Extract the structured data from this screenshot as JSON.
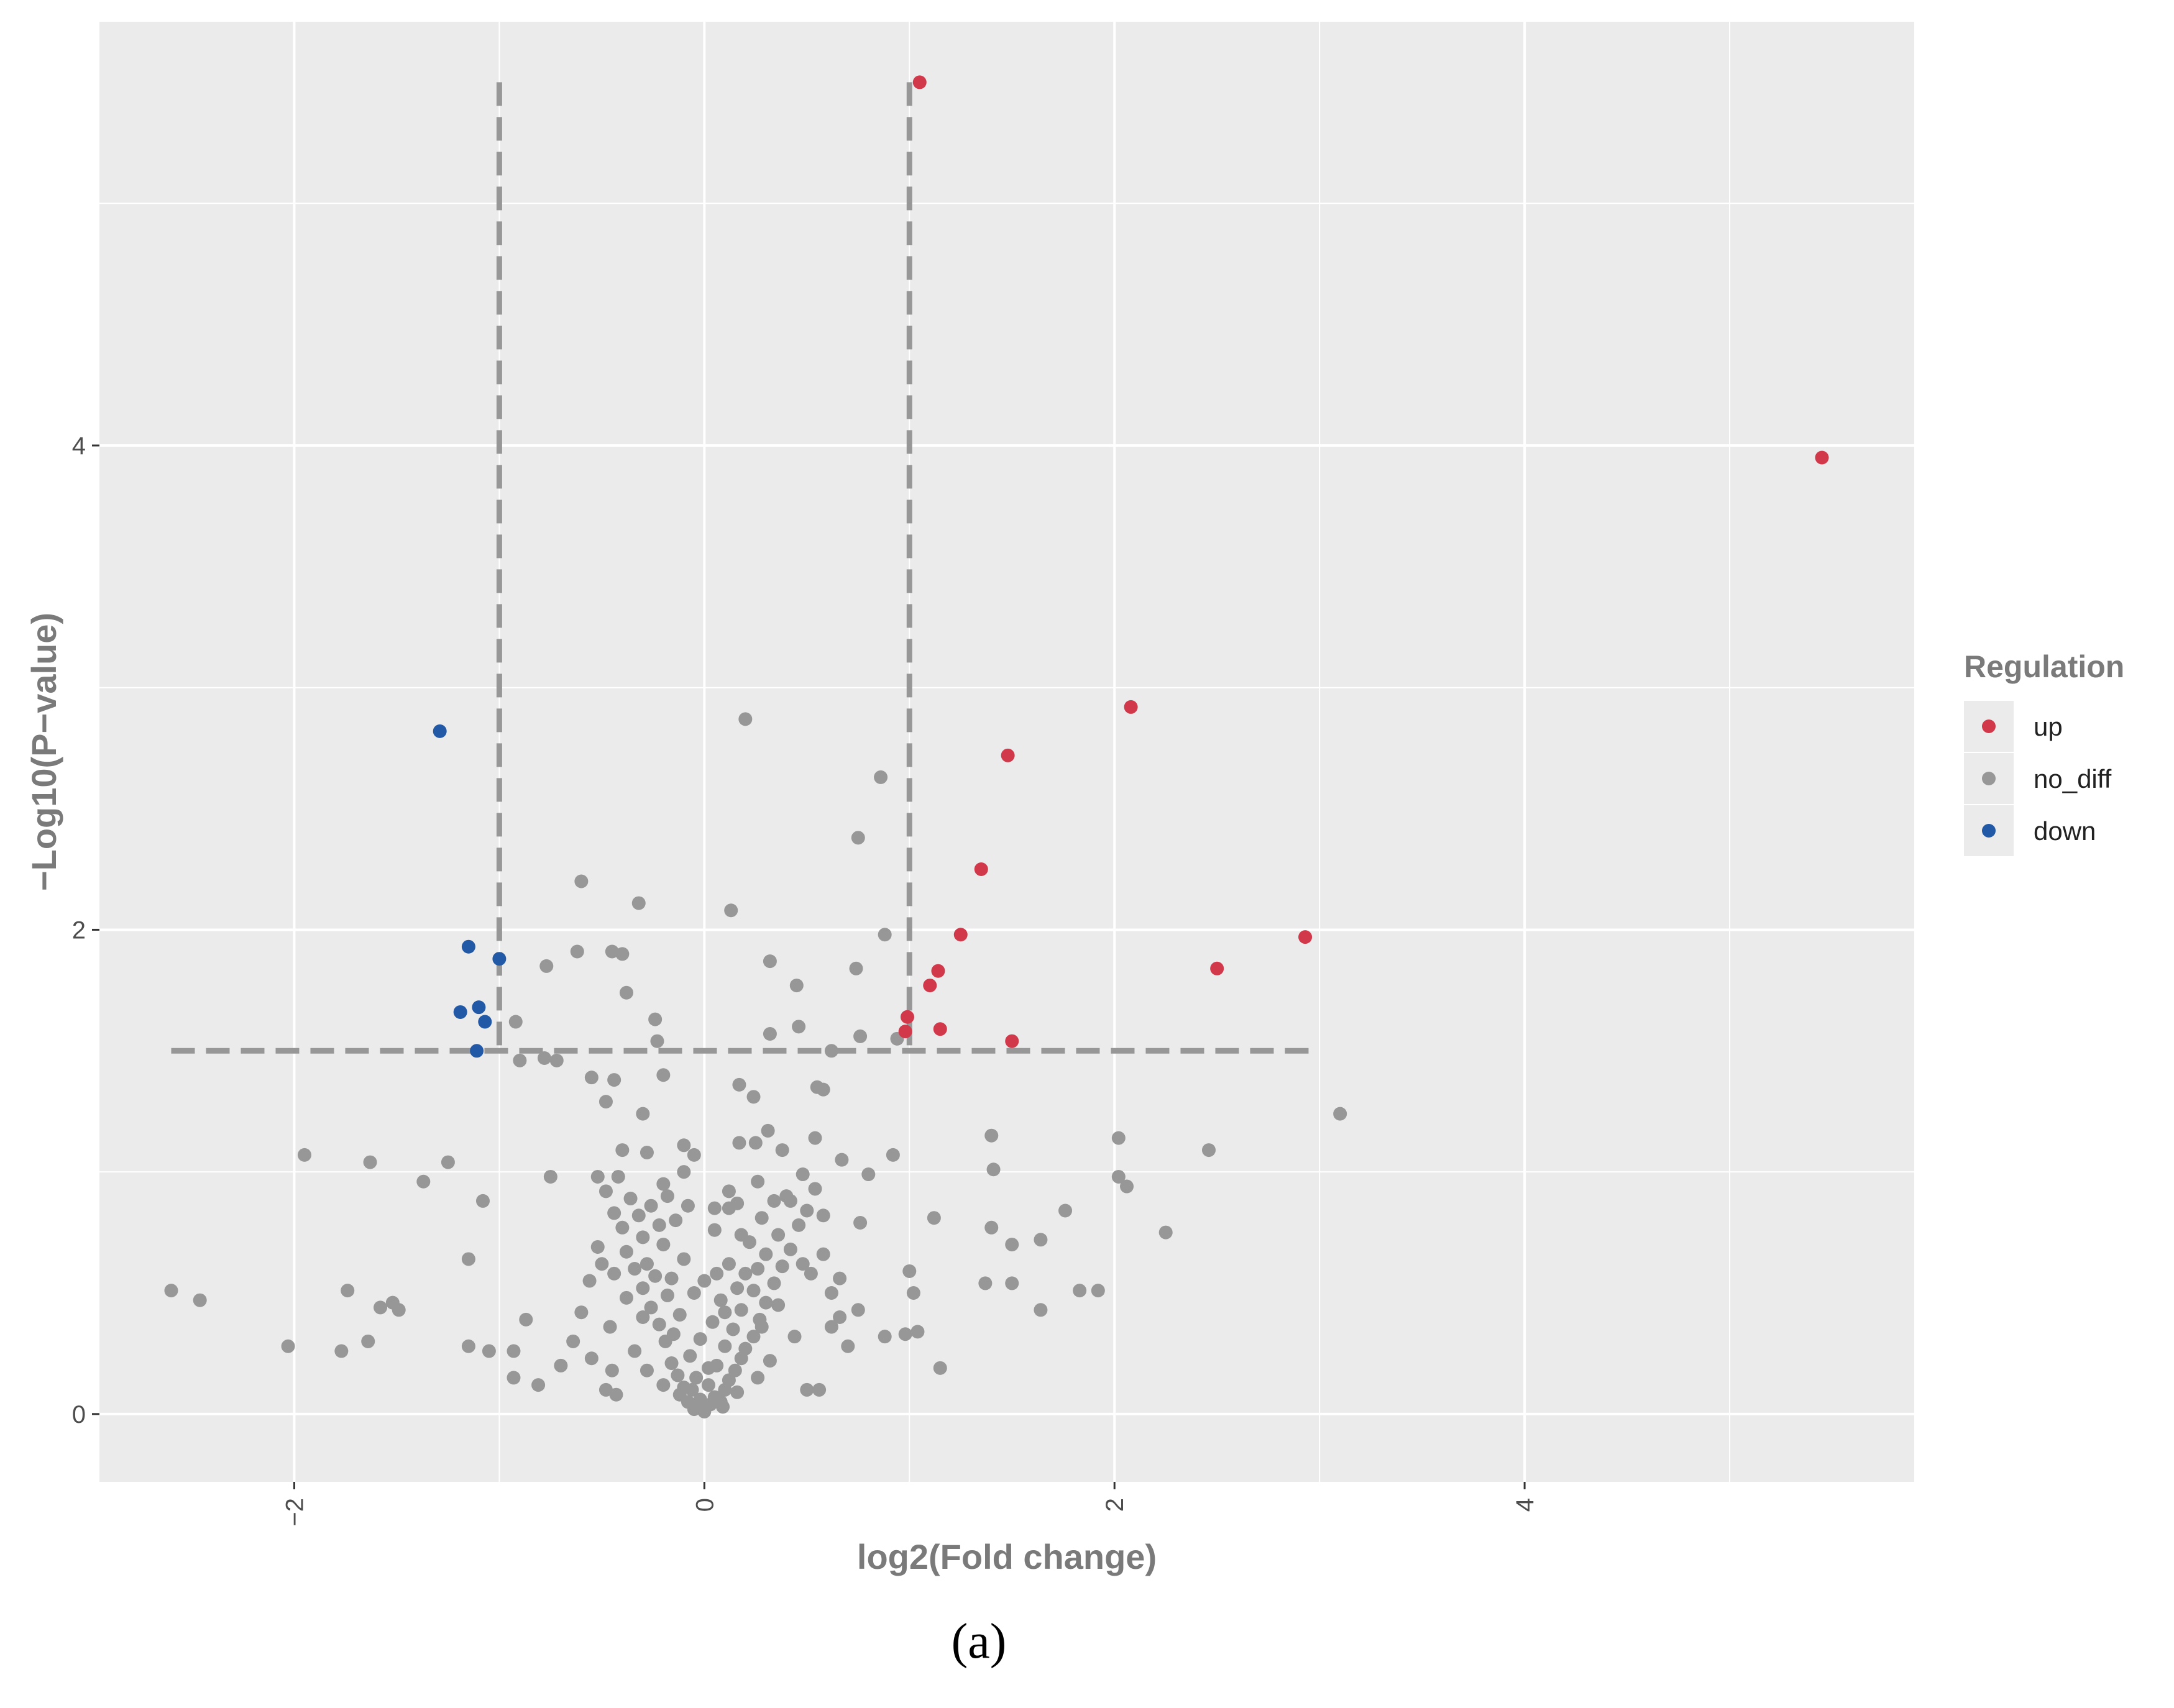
{
  "caption": "(a)",
  "colors": {
    "panel_bg": "#EBEBEB",
    "grid_major": "#FFFFFF",
    "up": "#D1394B",
    "no_diff": "#979797",
    "down": "#2259A6",
    "threshold_line": "#979797",
    "axis_text": "#4D4D4D",
    "title_text": "#7A7A7A"
  },
  "chart_data": {
    "type": "scatter",
    "title": "",
    "xlabel": "log2(Fold change)",
    "ylabel": "−Log10(P−value)",
    "xlim": [
      -2.95,
      5.9
    ],
    "ylim": [
      -0.28,
      5.75
    ],
    "x_ticks": [
      -2,
      0,
      2,
      4
    ],
    "x_tick_labels": [
      "−2",
      "0",
      "2",
      "4"
    ],
    "y_ticks": [
      0,
      2,
      4
    ],
    "y_tick_labels": [
      "0",
      "2",
      "4"
    ],
    "x_minor_grid": [
      -1,
      1,
      3,
      5
    ],
    "y_minor_grid": [
      1,
      3,
      5
    ],
    "grid": true,
    "legend": {
      "title": "Regulation",
      "placement": "right",
      "entries": [
        "up",
        "no_diff",
        "down"
      ]
    },
    "threshold_lines": {
      "vertical_x": [
        -1,
        1
      ],
      "vertical_y_range": [
        1.5,
        5.5
      ],
      "horizontal_y": 1.5,
      "horizontal_x_range": [
        -2.6,
        3
      ]
    },
    "series": [
      {
        "name": "up",
        "color": "#D1394B",
        "points": [
          [
            1.05,
            5.5
          ],
          [
            5.45,
            3.95
          ],
          [
            2.08,
            2.92
          ],
          [
            1.48,
            2.72
          ],
          [
            1.35,
            2.25
          ],
          [
            1.25,
            1.98
          ],
          [
            2.93,
            1.97
          ],
          [
            2.5,
            1.84
          ],
          [
            1.14,
            1.83
          ],
          [
            1.1,
            1.77
          ],
          [
            0.99,
            1.64
          ],
          [
            0.98,
            1.58
          ],
          [
            1.15,
            1.59
          ],
          [
            1.5,
            1.54
          ]
        ]
      },
      {
        "name": "down",
        "color": "#2259A6",
        "points": [
          [
            -1.29,
            2.82
          ],
          [
            -1.15,
            1.93
          ],
          [
            -1.0,
            1.88
          ],
          [
            -1.1,
            1.68
          ],
          [
            -1.19,
            1.66
          ],
          [
            -1.07,
            1.62
          ],
          [
            -1.11,
            1.5
          ]
        ]
      },
      {
        "name": "no_diff",
        "color": "#979797",
        "points": [
          [
            0.2,
            2.87
          ],
          [
            0.86,
            2.63
          ],
          [
            0.75,
            2.38
          ],
          [
            -0.6,
            2.2
          ],
          [
            -0.32,
            2.11
          ],
          [
            0.13,
            2.08
          ],
          [
            0.88,
            1.98
          ],
          [
            -0.62,
            1.91
          ],
          [
            -0.45,
            1.91
          ],
          [
            -0.4,
            1.9
          ],
          [
            0.32,
            1.87
          ],
          [
            -0.77,
            1.85
          ],
          [
            0.74,
            1.84
          ],
          [
            0.45,
            1.77
          ],
          [
            -0.38,
            1.74
          ],
          [
            -0.24,
            1.63
          ],
          [
            -0.92,
            1.62
          ],
          [
            0.46,
            1.6
          ],
          [
            0.32,
            1.57
          ],
          [
            0.76,
            1.56
          ],
          [
            0.94,
            1.55
          ],
          [
            -0.23,
            1.54
          ],
          [
            0.62,
            1.5
          ],
          [
            -0.9,
            1.46
          ],
          [
            -0.78,
            1.47
          ],
          [
            -0.72,
            1.46
          ],
          [
            -0.55,
            1.39
          ],
          [
            -0.44,
            1.38
          ],
          [
            -0.2,
            1.4
          ],
          [
            0.17,
            1.36
          ],
          [
            0.55,
            1.35
          ],
          [
            0.58,
            1.34
          ],
          [
            0.24,
            1.31
          ],
          [
            -0.48,
            1.29
          ],
          [
            -0.3,
            1.24
          ],
          [
            0.31,
            1.17
          ],
          [
            0.54,
            1.14
          ],
          [
            0.17,
            1.12
          ],
          [
            0.25,
            1.12
          ],
          [
            -0.1,
            1.11
          ],
          [
            -0.4,
            1.09
          ],
          [
            0.38,
            1.09
          ],
          [
            0.67,
            1.05
          ],
          [
            0.8,
            0.99
          ],
          [
            0.92,
            1.07
          ],
          [
            -0.28,
            1.08
          ],
          [
            -0.05,
            1.07
          ],
          [
            -1.95,
            1.07
          ],
          [
            -1.63,
            1.04
          ],
          [
            -1.25,
            1.04
          ],
          [
            -1.37,
            0.96
          ],
          [
            -1.08,
            0.88
          ],
          [
            -0.75,
            0.98
          ],
          [
            -0.52,
            0.98
          ],
          [
            -0.18,
            0.9
          ],
          [
            0.05,
            0.85
          ],
          [
            0.12,
            0.85
          ],
          [
            0.42,
            0.88
          ],
          [
            0.58,
            0.82
          ],
          [
            0.76,
            0.79
          ],
          [
            1.4,
            1.15
          ],
          [
            1.41,
            1.01
          ],
          [
            1.4,
            0.77
          ],
          [
            1.5,
            0.7
          ],
          [
            1.64,
            0.72
          ],
          [
            1.76,
            0.84
          ],
          [
            2.02,
            1.14
          ],
          [
            2.02,
            0.98
          ],
          [
            2.06,
            0.94
          ],
          [
            2.46,
            1.09
          ],
          [
            3.1,
            1.24
          ],
          [
            2.25,
            0.75
          ],
          [
            1.12,
            0.81
          ],
          [
            1.37,
            0.54
          ],
          [
            1.5,
            0.54
          ],
          [
            1.64,
            0.43
          ],
          [
            1.83,
            0.51
          ],
          [
            1.92,
            0.51
          ],
          [
            1.0,
            0.59
          ],
          [
            1.02,
            0.5
          ],
          [
            1.04,
            0.34
          ],
          [
            0.98,
            0.33
          ],
          [
            1.15,
            0.19
          ],
          [
            0.88,
            0.32
          ],
          [
            0.75,
            0.43
          ],
          [
            0.66,
            0.56
          ],
          [
            0.62,
            0.36
          ],
          [
            0.5,
            0.1
          ],
          [
            0.56,
            0.1
          ],
          [
            -1.15,
            0.64
          ],
          [
            -1.15,
            0.28
          ],
          [
            -1.05,
            0.26
          ],
          [
            -0.93,
            0.26
          ],
          [
            -0.93,
            0.15
          ],
          [
            -0.87,
            0.39
          ],
          [
            -0.81,
            0.12
          ],
          [
            -0.7,
            0.2
          ],
          [
            -0.55,
            0.23
          ],
          [
            -0.48,
            0.1
          ],
          [
            -0.45,
            0.18
          ],
          [
            -0.43,
            0.08
          ],
          [
            -2.6,
            0.51
          ],
          [
            -2.46,
            0.47
          ],
          [
            -2.03,
            0.28
          ],
          [
            -1.77,
            0.26
          ],
          [
            -1.74,
            0.51
          ],
          [
            -1.64,
            0.3
          ],
          [
            -1.58,
            0.44
          ],
          [
            -1.52,
            0.46
          ],
          [
            -1.49,
            0.43
          ]
        ],
        "cluster_points": [
          [
            -0.05,
            0.02
          ],
          [
            0.0,
            0.01
          ],
          [
            0.03,
            0.04
          ],
          [
            -0.02,
            0.06
          ],
          [
            0.05,
            0.07
          ],
          [
            0.08,
            0.05
          ],
          [
            -0.08,
            0.05
          ],
          [
            0.1,
            0.1
          ],
          [
            -0.1,
            0.11
          ],
          [
            0.12,
            0.14
          ],
          [
            -0.13,
            0.16
          ],
          [
            0.02,
            0.12
          ],
          [
            -0.04,
            0.15
          ],
          [
            0.15,
            0.18
          ],
          [
            0.06,
            0.2
          ],
          [
            -0.16,
            0.21
          ],
          [
            0.18,
            0.23
          ],
          [
            -0.07,
            0.24
          ],
          [
            0.2,
            0.27
          ],
          [
            0.1,
            0.28
          ],
          [
            -0.19,
            0.3
          ],
          [
            -0.02,
            0.31
          ],
          [
            0.24,
            0.32
          ],
          [
            0.14,
            0.35
          ],
          [
            -0.22,
            0.37
          ],
          [
            0.04,
            0.38
          ],
          [
            0.27,
            0.39
          ],
          [
            -0.12,
            0.41
          ],
          [
            0.18,
            0.43
          ],
          [
            -0.26,
            0.44
          ],
          [
            0.3,
            0.46
          ],
          [
            0.08,
            0.47
          ],
          [
            -0.18,
            0.49
          ],
          [
            0.24,
            0.51
          ],
          [
            -0.3,
            0.52
          ],
          [
            0.34,
            0.54
          ],
          [
            0.0,
            0.55
          ],
          [
            -0.24,
            0.57
          ],
          [
            0.2,
            0.58
          ],
          [
            -0.34,
            0.6
          ],
          [
            0.38,
            0.61
          ],
          [
            0.12,
            0.62
          ],
          [
            -0.1,
            0.64
          ],
          [
            0.3,
            0.66
          ],
          [
            -0.38,
            0.67
          ],
          [
            0.42,
            0.68
          ],
          [
            -0.2,
            0.7
          ],
          [
            0.22,
            0.71
          ],
          [
            -0.3,
            0.73
          ],
          [
            0.36,
            0.74
          ],
          [
            0.05,
            0.76
          ],
          [
            -0.4,
            0.77
          ],
          [
            0.46,
            0.78
          ],
          [
            -0.14,
            0.8
          ],
          [
            0.28,
            0.81
          ],
          [
            -0.44,
            0.83
          ],
          [
            0.5,
            0.84
          ],
          [
            -0.26,
            0.86
          ],
          [
            0.16,
            0.87
          ],
          [
            -0.36,
            0.89
          ],
          [
            0.4,
            0.9
          ],
          [
            -0.48,
            0.92
          ],
          [
            0.54,
            0.93
          ],
          [
            -0.2,
            0.95
          ],
          [
            0.26,
            0.96
          ],
          [
            -0.42,
            0.98
          ],
          [
            0.48,
            0.99
          ],
          [
            -0.1,
            1.0
          ],
          [
            -0.52,
            0.69
          ],
          [
            0.58,
            0.66
          ],
          [
            -0.56,
            0.55
          ],
          [
            0.62,
            0.5
          ],
          [
            -0.6,
            0.42
          ],
          [
            0.66,
            0.4
          ],
          [
            -0.64,
            0.3
          ],
          [
            0.7,
            0.28
          ],
          [
            -0.5,
            0.62
          ],
          [
            0.52,
            0.58
          ],
          [
            -0.46,
            0.36
          ],
          [
            0.44,
            0.32
          ],
          [
            -0.34,
            0.26
          ],
          [
            0.32,
            0.22
          ],
          [
            -0.28,
            0.18
          ],
          [
            0.26,
            0.15
          ],
          [
            -0.2,
            0.12
          ],
          [
            0.16,
            0.09
          ],
          [
            -0.12,
            0.08
          ],
          [
            0.09,
            0.03
          ],
          [
            -0.06,
            0.1
          ],
          [
            0.02,
            0.19
          ],
          [
            -0.15,
            0.33
          ],
          [
            0.1,
            0.42
          ],
          [
            -0.05,
            0.5
          ],
          [
            0.06,
            0.58
          ],
          [
            -0.22,
            0.78
          ],
          [
            0.18,
            0.74
          ],
          [
            -0.32,
            0.82
          ],
          [
            0.34,
            0.88
          ],
          [
            -0.08,
            0.86
          ],
          [
            0.12,
            0.92
          ],
          [
            -0.28,
            0.62
          ],
          [
            0.26,
            0.6
          ],
          [
            -0.38,
            0.48
          ],
          [
            0.36,
            0.45
          ],
          [
            -0.44,
            0.58
          ],
          [
            0.48,
            0.62
          ],
          [
            -0.16,
            0.56
          ],
          [
            0.16,
            0.52
          ],
          [
            -0.3,
            0.4
          ],
          [
            0.28,
            0.36
          ]
        ]
      }
    ]
  }
}
